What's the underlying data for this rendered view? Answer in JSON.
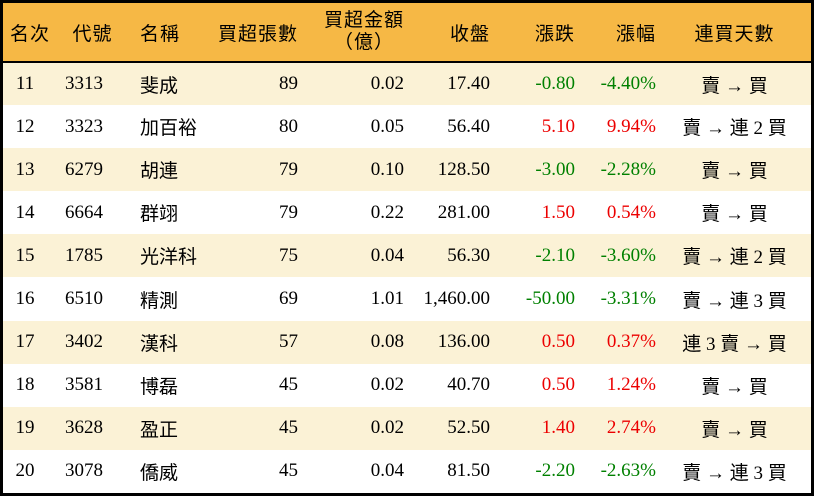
{
  "colors": {
    "header_bg": "#F6B845",
    "row_alt_bg": "#FBF2D6",
    "row_bg": "#FFFFFF",
    "border": "#000000",
    "up_red": "#EC0000",
    "down_green": "#008000",
    "text": "#000000"
  },
  "chart_data": {
    "type": "table",
    "columns": [
      "名次",
      "代號",
      "名稱",
      "買超張數",
      "買超金額（億）",
      "收盤",
      "漲跌",
      "漲幅",
      "連買天數"
    ],
    "header": {
      "rank": "名次",
      "code": "代號",
      "name": "名稱",
      "shares": "買超張數",
      "amount_line1": "買超金額",
      "amount_line2": "（億）",
      "close": "收盤",
      "change": "漲跌",
      "pct": "漲幅",
      "streak": "連買天數"
    },
    "rows": [
      {
        "rank": "11",
        "code": "3313",
        "name": "斐成",
        "shares": "89",
        "amount": "0.02",
        "close": "17.40",
        "change": "-0.80",
        "pct": "-4.40%",
        "streak": "賣 → 買",
        "trend": "down"
      },
      {
        "rank": "12",
        "code": "3323",
        "name": "加百裕",
        "shares": "80",
        "amount": "0.05",
        "close": "56.40",
        "change": "5.10",
        "pct": "9.94%",
        "streak": "賣 → 連 2 買",
        "trend": "up"
      },
      {
        "rank": "13",
        "code": "6279",
        "name": "胡連",
        "shares": "79",
        "amount": "0.10",
        "close": "128.50",
        "change": "-3.00",
        "pct": "-2.28%",
        "streak": "賣 → 買",
        "trend": "down"
      },
      {
        "rank": "14",
        "code": "6664",
        "name": "群翊",
        "shares": "79",
        "amount": "0.22",
        "close": "281.00",
        "change": "1.50",
        "pct": "0.54%",
        "streak": "賣 → 買",
        "trend": "up"
      },
      {
        "rank": "15",
        "code": "1785",
        "name": "光洋科",
        "shares": "75",
        "amount": "0.04",
        "close": "56.30",
        "change": "-2.10",
        "pct": "-3.60%",
        "streak": "賣 → 連 2 買",
        "trend": "down"
      },
      {
        "rank": "16",
        "code": "6510",
        "name": "精測",
        "shares": "69",
        "amount": "1.01",
        "close": "1,460.00",
        "change": "-50.00",
        "pct": "-3.31%",
        "streak": "賣 → 連 3 買",
        "trend": "down"
      },
      {
        "rank": "17",
        "code": "3402",
        "name": "漢科",
        "shares": "57",
        "amount": "0.08",
        "close": "136.00",
        "change": "0.50",
        "pct": "0.37%",
        "streak": "連 3 賣 → 買",
        "trend": "up"
      },
      {
        "rank": "18",
        "code": "3581",
        "name": "博磊",
        "shares": "45",
        "amount": "0.02",
        "close": "40.70",
        "change": "0.50",
        "pct": "1.24%",
        "streak": "賣 → 買",
        "trend": "up"
      },
      {
        "rank": "19",
        "code": "3628",
        "name": "盈正",
        "shares": "45",
        "amount": "0.02",
        "close": "52.50",
        "change": "1.40",
        "pct": "2.74%",
        "streak": "賣 → 買",
        "trend": "up"
      },
      {
        "rank": "20",
        "code": "3078",
        "name": "僑威",
        "shares": "45",
        "amount": "0.04",
        "close": "81.50",
        "change": "-2.20",
        "pct": "-2.63%",
        "streak": "賣 → 連 3 買",
        "trend": "down"
      }
    ]
  }
}
